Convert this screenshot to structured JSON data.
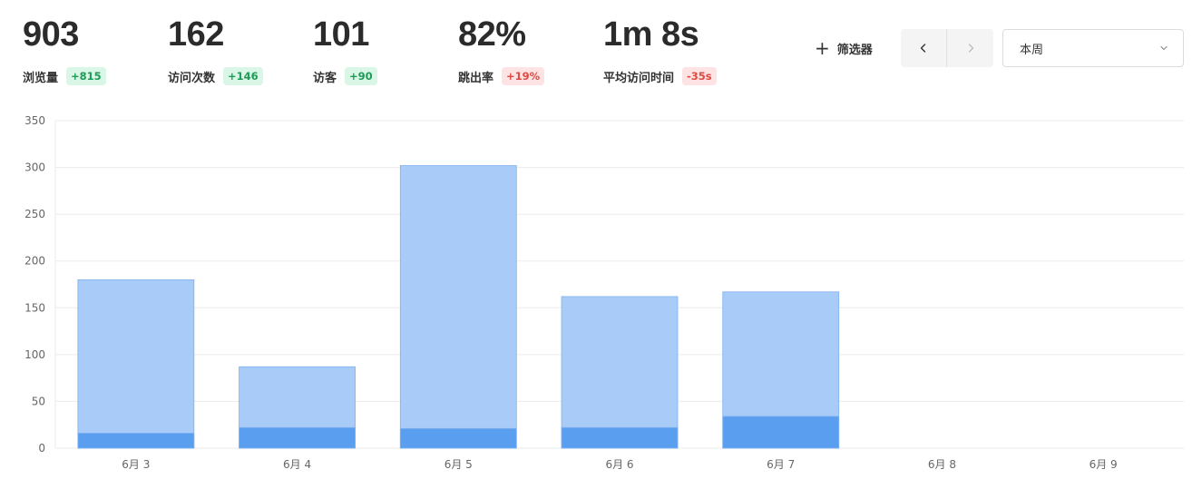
{
  "metrics": [
    {
      "value": "903",
      "label": "浏览量",
      "change": "+815",
      "trend": "up"
    },
    {
      "value": "162",
      "label": "访问次数",
      "change": "+146",
      "trend": "up"
    },
    {
      "value": "101",
      "label": "访客",
      "change": "+90",
      "trend": "up"
    },
    {
      "value": "82%",
      "label": "跳出率",
      "change": "+19%",
      "trend": "down"
    },
    {
      "value": "1m 8s",
      "label": "平均访问时间",
      "change": "-35s",
      "trend": "down"
    }
  ],
  "toolbar": {
    "filter_label": "筛选器",
    "filter_icon": "plus-icon",
    "prev_icon": "chevron-left-icon",
    "next_icon": "chevron-right-icon",
    "period_value": "本周",
    "period_icon": "chevron-down-icon"
  },
  "colors": {
    "badge_up_bg": "#daf6e6",
    "badge_up_text": "#1c9b56",
    "badge_down_bg": "#fde3e3",
    "badge_down_text": "#e0493f",
    "series_light": "#a8cbf7",
    "series_dark": "#5a9eef",
    "gridline": "#ebebeb",
    "axis_text": "#666666"
  },
  "chart_data": {
    "type": "bar",
    "categories": [
      "6月 3",
      "6月 4",
      "6月 5",
      "6月 6",
      "6月 7",
      "6月 8",
      "6月 9"
    ],
    "series": [
      {
        "values": [
          180,
          87,
          302,
          162,
          167,
          0,
          0
        ],
        "color": "#a8cbf7"
      },
      {
        "values": [
          16,
          22,
          21,
          22,
          34,
          0,
          0
        ],
        "color": "#5a9eef"
      }
    ],
    "overlap": true,
    "ylim": [
      0,
      350
    ],
    "yticks": [
      0,
      50,
      100,
      150,
      200,
      250,
      300,
      350
    ],
    "xlabel": "",
    "ylabel": "",
    "grid": true,
    "legend": "none"
  }
}
